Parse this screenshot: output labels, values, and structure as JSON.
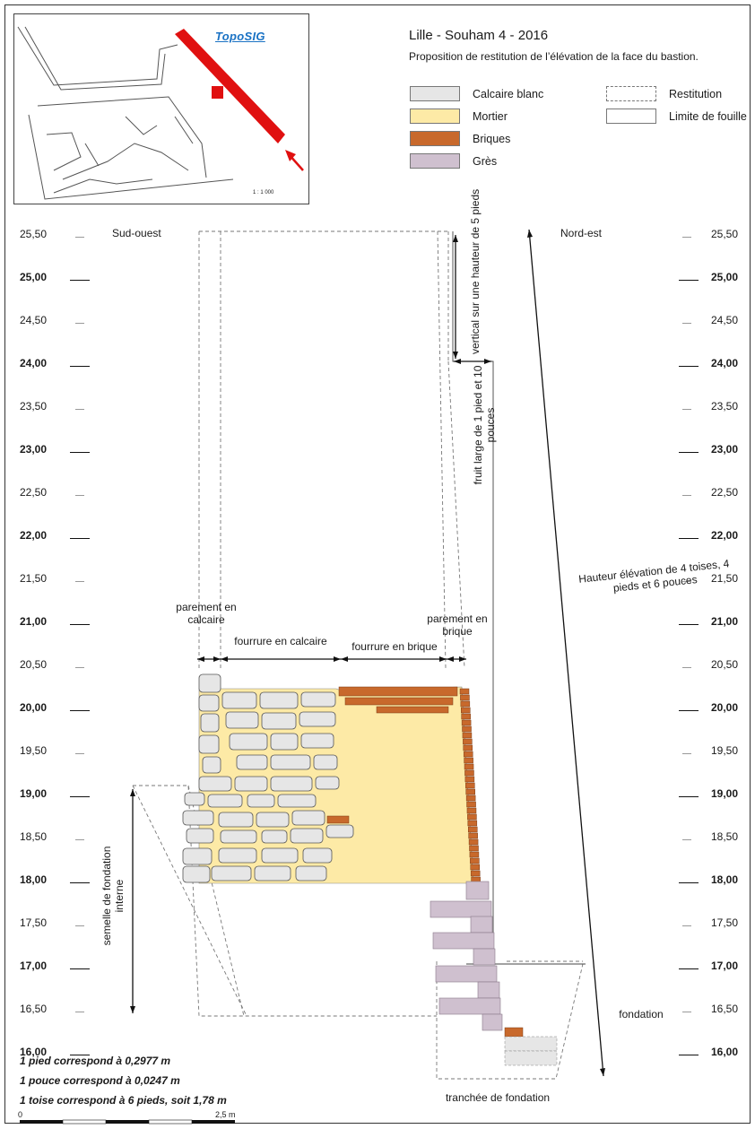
{
  "header": {
    "title": "Lille - Souham 4 - 2016",
    "subtitle": "Proposition de restitution de l’élévation de la face du bastion."
  },
  "inset": {
    "logo": "TopoSIG",
    "scale": "1 : 1 000"
  },
  "legend": {
    "materials": [
      {
        "label": "Calcaire blanc",
        "color": "#e6e6e6"
      },
      {
        "label": "Mortier",
        "color": "#fdeaa6"
      },
      {
        "label": "Briques",
        "color": "#c8692c"
      },
      {
        "label": "Grès",
        "color": "#cfc0cf"
      }
    ],
    "lines": [
      {
        "label": "Restitution",
        "style": "dashed"
      },
      {
        "label": "Limite de fouille",
        "style": "solid"
      }
    ]
  },
  "orientation": {
    "left": "Sud-ouest",
    "right": "Nord-est"
  },
  "levels": [
    "25,50",
    "25,00",
    "24,50",
    "24,00",
    "23,50",
    "23,00",
    "22,50",
    "22,00",
    "21,50",
    "21,00",
    "20,50",
    "20,00",
    "19,50",
    "19,00",
    "18,50",
    "18,00",
    "17,50",
    "17,00",
    "16,50",
    "16,00"
  ],
  "annotations": {
    "vertical": "vertical sur une hauteur de 5 pieds",
    "fruit": "fruit large de 1 pied et 10 pouces",
    "hauteur": "Hauteur élévation de 4 toises, 4 pieds et 6 pouces",
    "parement_calcaire": "parement en calcaire",
    "fourrure_calcaire": "fourrure en calcaire",
    "fourrure_brique": "fourrure en brique",
    "parement_brique": "parement en brique",
    "semelle": "semelle de fondation interne",
    "fondation": "fondation",
    "tranchee": "tranchée de fondation"
  },
  "notes": [
    "1 pied correspond à 0,2977 m",
    "1 pouce correspond à 0,0247 m",
    "1 toise correspond à 6 pieds, soit 1,78 m"
  ],
  "scalebar": {
    "start": "0",
    "end": "2,5 m"
  }
}
